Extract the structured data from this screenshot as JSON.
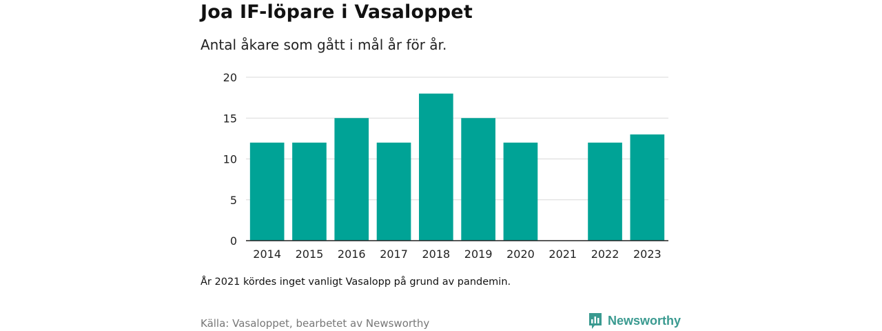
{
  "header": {
    "title": "Joa IF-löpare i Vasaloppet",
    "subtitle": "Antal åkare som gått i mål år för år."
  },
  "footer": {
    "note": "År 2021 kördes inget vanligt Vasalopp på grund av pandemin.",
    "source": "Källa: Vasaloppet, bearbetet av Newsworthy",
    "brand": "Newsworthy"
  },
  "colors": {
    "bar": "#00a396",
    "grid": "#d9d9d9",
    "axis": "#222222",
    "brand": "#3a9a90"
  },
  "chart_data": {
    "type": "bar",
    "title": "Joa IF-löpare i Vasaloppet",
    "subtitle": "Antal åkare som gått i mål år för år.",
    "xlabel": "",
    "ylabel": "",
    "categories": [
      "2014",
      "2015",
      "2016",
      "2017",
      "2018",
      "2019",
      "2020",
      "2021",
      "2022",
      "2023"
    ],
    "values": [
      12,
      12,
      15,
      12,
      18,
      15,
      12,
      0,
      12,
      13
    ],
    "ylim": [
      0,
      20
    ],
    "yticks": [
      0,
      5,
      10,
      15,
      20
    ],
    "grid": true,
    "legend": "none"
  }
}
